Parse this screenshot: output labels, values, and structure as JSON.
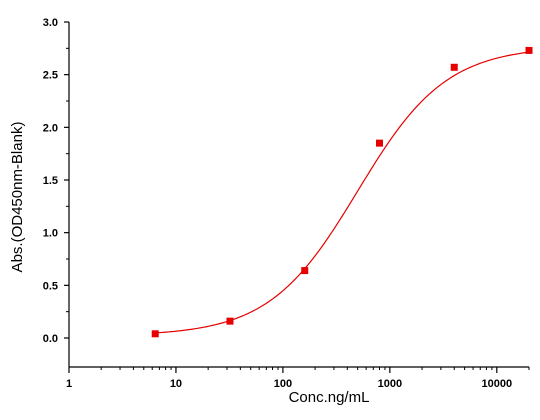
{
  "chart_data": {
    "type": "scatter",
    "title": "",
    "xlabel": "Conc.ng/mL",
    "ylabel": "Abs.(OD450nm-Blank)",
    "x_scale": "log",
    "xlim": [
      1,
      20000
    ],
    "ylim": [
      0,
      3.0
    ],
    "x_ticks": [
      1,
      10,
      100,
      1000,
      10000
    ],
    "x_tick_labels": [
      "1",
      "10",
      "100",
      "1000",
      "10000"
    ],
    "y_ticks": [
      0,
      0.5,
      1.0,
      1.5,
      2.0,
      2.5,
      3.0
    ],
    "y_tick_labels": [
      "0.0",
      "0.5",
      "1.0",
      "1.5",
      "2.0",
      "2.5",
      "3.0"
    ],
    "grid": false,
    "legend": "none",
    "colors": {
      "marker": "#e60000",
      "curve": "#e60000",
      "axis": "#000000"
    },
    "series": [
      {
        "points": [
          {
            "x": 6.4,
            "y": 0.04
          },
          {
            "x": 32,
            "y": 0.16
          },
          {
            "x": 160,
            "y": 0.64
          },
          {
            "x": 800,
            "y": 1.85
          },
          {
            "x": 4000,
            "y": 2.57
          },
          {
            "x": 20000,
            "y": 2.73
          }
        ],
        "fit": "four-parameter logistic",
        "fit_params": {
          "bottom": 0.02,
          "top": 2.77,
          "ec50": 500,
          "hill": 1.05
        }
      }
    ]
  }
}
